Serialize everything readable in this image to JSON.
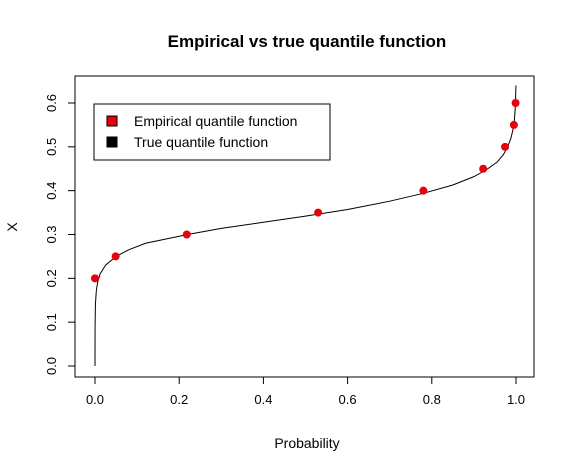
{
  "chart_data": {
    "type": "line",
    "title": "Empirical vs true quantile function",
    "xlabel": "Probability",
    "ylabel": "X",
    "xlim": [
      0,
      1
    ],
    "ylim": [
      0,
      0.6
    ],
    "x_ticks": [
      "0.0",
      "0.2",
      "0.4",
      "0.6",
      "0.8",
      "1.0"
    ],
    "y_ticks": [
      "0.0",
      "0.1",
      "0.2",
      "0.3",
      "0.4",
      "0.5",
      "0.6"
    ],
    "grid": false,
    "legend": {
      "position": "top-left",
      "entries": [
        {
          "label": "Empirical quantile function",
          "color": "#e8000b"
        },
        {
          "label": "True quantile function",
          "color": "#000000"
        }
      ]
    },
    "series": [
      {
        "name": "Empirical quantile function",
        "style": "points",
        "color": "#e8000b",
        "x": [
          0.0,
          0.049,
          0.218,
          0.53,
          0.78,
          0.922,
          0.974,
          0.995,
          0.999
        ],
        "y": [
          0.2,
          0.25,
          0.3,
          0.35,
          0.4,
          0.45,
          0.5,
          0.55,
          0.6
        ]
      },
      {
        "name": "True quantile function",
        "style": "line",
        "color": "#000000",
        "x": [
          0.0,
          0.0002,
          0.001,
          0.003,
          0.006,
          0.012,
          0.025,
          0.05,
          0.08,
          0.12,
          0.17,
          0.22,
          0.3,
          0.4,
          0.5,
          0.6,
          0.7,
          0.78,
          0.85,
          0.9,
          0.93,
          0.955,
          0.97,
          0.98,
          0.988,
          0.993,
          0.996,
          0.998,
          0.999,
          0.9995,
          1.0
        ],
        "y": [
          0.0,
          0.09,
          0.14,
          0.17,
          0.19,
          0.21,
          0.23,
          0.25,
          0.265,
          0.28,
          0.29,
          0.3,
          0.314,
          0.328,
          0.342,
          0.357,
          0.376,
          0.394,
          0.413,
          0.432,
          0.448,
          0.465,
          0.482,
          0.5,
          0.52,
          0.54,
          0.56,
          0.585,
          0.61,
          0.63,
          0.64
        ]
      }
    ]
  }
}
